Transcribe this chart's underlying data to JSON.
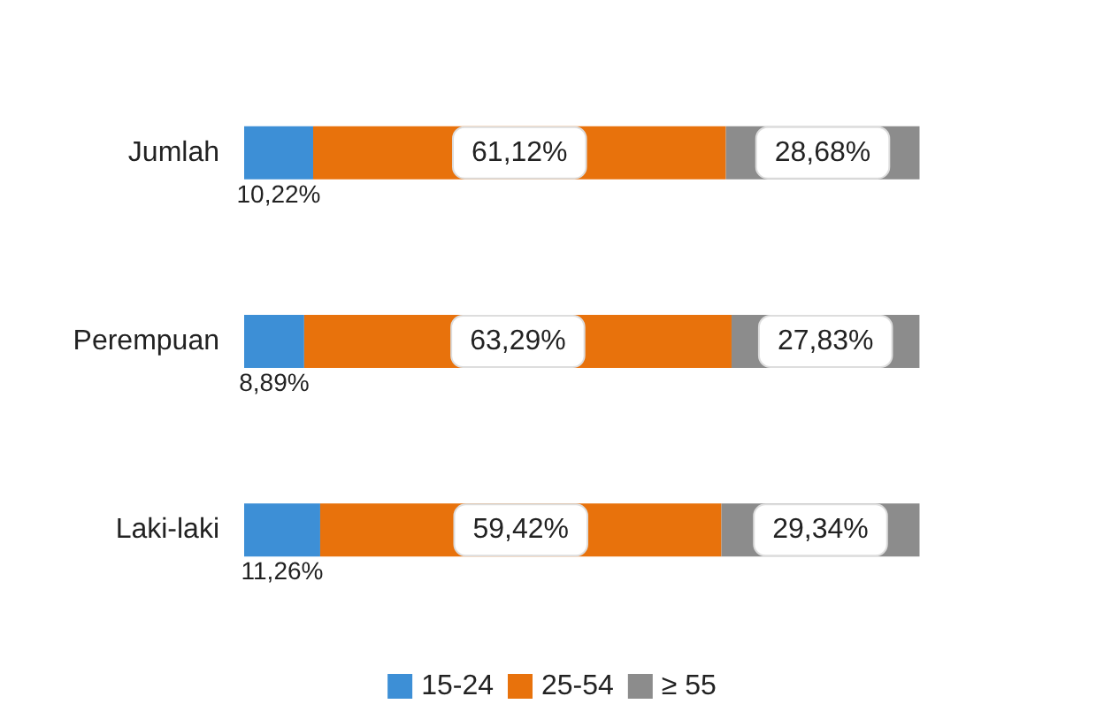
{
  "chart_data": {
    "type": "bar",
    "orientation": "horizontal",
    "stacked": true,
    "categories": [
      "Jumlah",
      "Perempuan",
      "Laki-laki"
    ],
    "series": [
      {
        "name": "15-24",
        "color": "#3d8fd6",
        "values": [
          10.22,
          8.89,
          11.26
        ],
        "value_labels": [
          "10,22%",
          "8,89%",
          "11,26%"
        ]
      },
      {
        "name": "25-54",
        "color": "#e8720c",
        "values": [
          61.12,
          63.29,
          59.42
        ],
        "value_labels": [
          "61,12%",
          "63,29%",
          "59,42%"
        ]
      },
      {
        "name": "≥ 55",
        "color": "#8c8c8c",
        "values": [
          28.68,
          27.83,
          29.34
        ],
        "value_labels": [
          "28,68%",
          "27,83%",
          "29,34%"
        ]
      }
    ],
    "legend": "bottom",
    "grid": false
  }
}
